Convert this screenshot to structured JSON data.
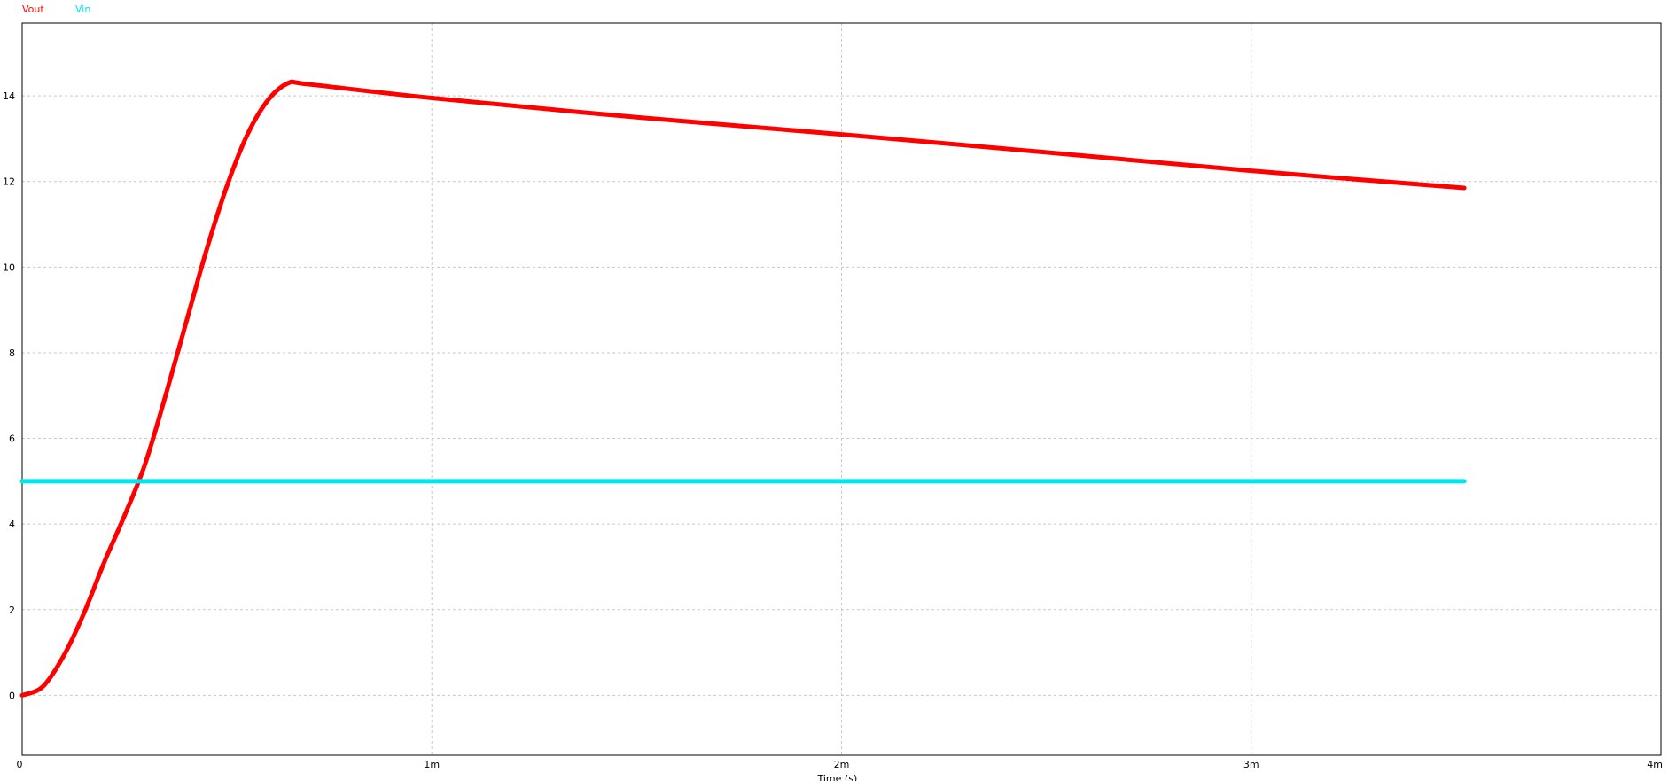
{
  "chart_data": {
    "type": "line",
    "title": "",
    "xlabel": "Time (s)",
    "ylabel": "",
    "xlim": [
      0,
      0.004
    ],
    "ylim": [
      -1.4,
      15.7
    ],
    "x_ticks": [
      {
        "value": 0,
        "label": "0"
      },
      {
        "value": 0.001,
        "label": "1m"
      },
      {
        "value": 0.002,
        "label": "2m"
      },
      {
        "value": 0.003,
        "label": "3m"
      },
      {
        "value": 0.004,
        "label": "4m"
      }
    ],
    "y_ticks": [
      {
        "value": 0,
        "label": "0"
      },
      {
        "value": 2,
        "label": "2"
      },
      {
        "value": 4,
        "label": "4"
      },
      {
        "value": 6,
        "label": "6"
      },
      {
        "value": 8,
        "label": "8"
      },
      {
        "value": 10,
        "label": "10"
      },
      {
        "value": 12,
        "label": "12"
      },
      {
        "value": 14,
        "label": "14"
      }
    ],
    "grid": true,
    "legend_placement": "top-left",
    "series": [
      {
        "name": "Vout",
        "color": "#ff0000",
        "x": [
          0,
          5e-05,
          0.0001,
          0.00015,
          0.0002,
          0.00025,
          0.0003,
          0.00035,
          0.0004,
          0.00045,
          0.0005,
          0.00055,
          0.0006,
          0.00065,
          0.0007,
          0.001,
          0.0015,
          0.002,
          0.0025,
          0.003,
          0.00352
        ],
        "y": [
          0,
          0.2,
          0.9,
          1.9,
          3.1,
          4.2,
          5.4,
          7.0,
          8.7,
          10.4,
          11.9,
          13.1,
          13.9,
          14.3,
          14.27,
          13.95,
          13.5,
          13.1,
          12.68,
          12.25,
          11.85
        ]
      },
      {
        "name": "Vin",
        "color": "#00e5ee",
        "x": [
          0,
          0.00352
        ],
        "y": [
          5.0,
          5.0
        ]
      }
    ]
  }
}
